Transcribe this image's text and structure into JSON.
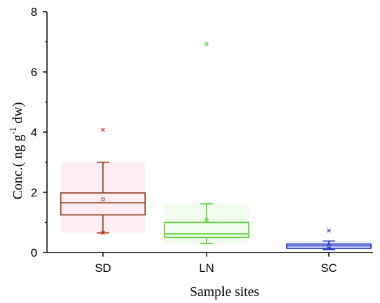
{
  "chart_data": {
    "type": "boxplot",
    "xlabel": "Sample sites",
    "ylabel": "Conc.(   ng g",
    "ylabel_sup": "-1",
    "ylabel_tail": " dw)",
    "ylim": [
      0,
      8
    ],
    "yticks": [
      "0",
      "2",
      "4",
      "6",
      "8"
    ],
    "grid": false,
    "categories": [
      "SD",
      "LN",
      "SC"
    ],
    "boxes": [
      {
        "name": "SD",
        "color": "#8b3a0f",
        "fill": "#fbe3f0",
        "whisker_low": 0.65,
        "q1": 1.25,
        "median": 1.65,
        "q3": 1.98,
        "whisker_high": 3.0,
        "mean": 1.77,
        "outliers": [
          0.65,
          4.08
        ],
        "outlier_color": "#e02020"
      },
      {
        "name": "LN",
        "color": "#4fd12a",
        "fill": "#e8f8e2",
        "whisker_low": 0.3,
        "q1": 0.5,
        "median": 0.62,
        "q3": 1.0,
        "whisker_high": 1.62,
        "mean": 1.08,
        "outliers": [
          6.93
        ],
        "outlier_color": "#4fd12a"
      },
      {
        "name": "SC",
        "color": "#1a2fc8",
        "fill": "#e4e6fa",
        "whisker_low": 0.1,
        "q1": 0.14,
        "median": 0.22,
        "q3": 0.28,
        "whisker_high": 0.38,
        "mean": 0.22,
        "outliers": [
          0.73
        ],
        "outlier_color": "#1a2fc8"
      }
    ]
  }
}
